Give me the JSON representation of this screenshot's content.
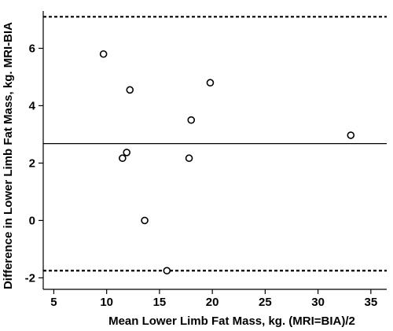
{
  "chart_data": {
    "type": "scatter",
    "xlabel": "Mean Lower Limb Fat Mass, kg. (MRI=BIA)/2",
    "ylabel": "Difference in Lower Limb Fat Mass, kg. MRI-BIA",
    "xlim": [
      4,
      36.5
    ],
    "ylim": [
      -2.4,
      7.3
    ],
    "xticks": [
      5,
      10,
      15,
      20,
      25,
      30,
      35
    ],
    "yticks": [
      -2,
      0,
      2,
      4,
      6
    ],
    "x": [
      9.7,
      12.2,
      19.8,
      18.0,
      33.1,
      11.9,
      11.5,
      17.8,
      13.6,
      15.7
    ],
    "y": [
      5.8,
      4.55,
      4.8,
      3.5,
      2.97,
      2.37,
      2.17,
      2.17,
      0.0,
      -1.75
    ],
    "mean_line": 2.68,
    "upper_limit": 7.1,
    "lower_limit": -1.75,
    "grid": false,
    "legend": "none",
    "colors": {
      "axis": "#000000",
      "marker_edge": "#000000",
      "marker_fill": "#ffffff"
    }
  }
}
